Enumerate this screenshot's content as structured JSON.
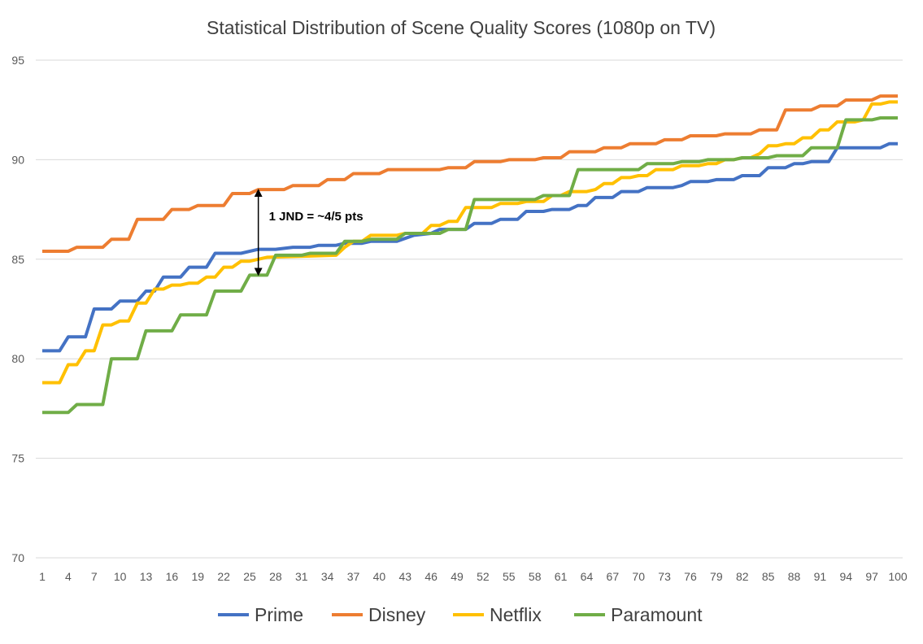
{
  "chart_data": {
    "type": "line",
    "title": "Statistical Distribution of Scene Quality Scores (1080p on TV)",
    "xlabel": "",
    "ylabel": "",
    "ylim": [
      70,
      95
    ],
    "yticks": [
      70,
      75,
      80,
      85,
      90,
      95
    ],
    "xlim": [
      1,
      100
    ],
    "xticks": [
      1,
      4,
      7,
      10,
      13,
      16,
      19,
      22,
      25,
      28,
      31,
      34,
      37,
      40,
      43,
      46,
      49,
      52,
      55,
      58,
      61,
      64,
      67,
      70,
      73,
      76,
      79,
      82,
      85,
      88,
      91,
      94,
      97,
      100
    ],
    "grid": true,
    "legend_position": "bottom",
    "series": [
      {
        "name": "Prime",
        "color": "#4472C4",
        "points": [
          [
            1,
            80.4
          ],
          [
            3,
            80.4
          ],
          [
            4,
            81.1
          ],
          [
            6,
            81.1
          ],
          [
            7,
            82.5
          ],
          [
            9,
            82.5
          ],
          [
            10,
            82.9
          ],
          [
            12,
            82.9
          ],
          [
            13,
            83.4
          ],
          [
            14,
            83.4
          ],
          [
            15,
            84.1
          ],
          [
            17,
            84.1
          ],
          [
            18,
            84.6
          ],
          [
            20,
            84.6
          ],
          [
            21,
            85.3
          ],
          [
            24,
            85.3
          ],
          [
            26,
            85.5
          ],
          [
            28,
            85.5
          ],
          [
            30,
            85.6
          ],
          [
            32,
            85.6
          ],
          [
            33,
            85.7
          ],
          [
            35,
            85.7
          ],
          [
            36,
            85.8
          ],
          [
            38,
            85.8
          ],
          [
            39,
            85.9
          ],
          [
            42,
            85.9
          ],
          [
            44,
            86.2
          ],
          [
            46,
            86.3
          ],
          [
            47,
            86.5
          ],
          [
            50,
            86.5
          ],
          [
            51,
            86.8
          ],
          [
            53,
            86.8
          ],
          [
            54,
            87.0
          ],
          [
            56,
            87.0
          ],
          [
            57,
            87.4
          ],
          [
            59,
            87.4
          ],
          [
            60,
            87.5
          ],
          [
            62,
            87.5
          ],
          [
            63,
            87.7
          ],
          [
            64,
            87.7
          ],
          [
            65,
            88.1
          ],
          [
            67,
            88.1
          ],
          [
            68,
            88.4
          ],
          [
            70,
            88.4
          ],
          [
            71,
            88.6
          ],
          [
            74,
            88.6
          ],
          [
            75,
            88.7
          ],
          [
            76,
            88.9
          ],
          [
            78,
            88.9
          ],
          [
            79,
            89.0
          ],
          [
            81,
            89.0
          ],
          [
            82,
            89.2
          ],
          [
            84,
            89.2
          ],
          [
            85,
            89.6
          ],
          [
            87,
            89.6
          ],
          [
            88,
            89.8
          ],
          [
            89,
            89.8
          ],
          [
            90,
            89.9
          ],
          [
            92,
            89.9
          ],
          [
            93,
            90.6
          ],
          [
            98,
            90.6
          ],
          [
            99,
            90.8
          ],
          [
            100,
            90.8
          ]
        ]
      },
      {
        "name": "Disney",
        "color": "#ED7D31",
        "points": [
          [
            1,
            85.4
          ],
          [
            4,
            85.4
          ],
          [
            5,
            85.6
          ],
          [
            8,
            85.6
          ],
          [
            9,
            86.0
          ],
          [
            11,
            86.0
          ],
          [
            12,
            87.0
          ],
          [
            15,
            87.0
          ],
          [
            16,
            87.5
          ],
          [
            18,
            87.5
          ],
          [
            19,
            87.7
          ],
          [
            22,
            87.7
          ],
          [
            23,
            88.3
          ],
          [
            25,
            88.3
          ],
          [
            26,
            88.5
          ],
          [
            29,
            88.5
          ],
          [
            30,
            88.7
          ],
          [
            33,
            88.7
          ],
          [
            34,
            89.0
          ],
          [
            36,
            89.0
          ],
          [
            37,
            89.3
          ],
          [
            40,
            89.3
          ],
          [
            41,
            89.5
          ],
          [
            47,
            89.5
          ],
          [
            48,
            89.6
          ],
          [
            50,
            89.6
          ],
          [
            51,
            89.9
          ],
          [
            54,
            89.9
          ],
          [
            55,
            90.0
          ],
          [
            58,
            90.0
          ],
          [
            59,
            90.1
          ],
          [
            61,
            90.1
          ],
          [
            62,
            90.4
          ],
          [
            65,
            90.4
          ],
          [
            66,
            90.6
          ],
          [
            68,
            90.6
          ],
          [
            69,
            90.8
          ],
          [
            72,
            90.8
          ],
          [
            73,
            91.0
          ],
          [
            75,
            91.0
          ],
          [
            76,
            91.2
          ],
          [
            79,
            91.2
          ],
          [
            80,
            91.3
          ],
          [
            83,
            91.3
          ],
          [
            84,
            91.5
          ],
          [
            86,
            91.5
          ],
          [
            87,
            92.5
          ],
          [
            90,
            92.5
          ],
          [
            91,
            92.7
          ],
          [
            93,
            92.7
          ],
          [
            94,
            93.0
          ],
          [
            97,
            93.0
          ],
          [
            98,
            93.2
          ],
          [
            100,
            93.2
          ]
        ]
      },
      {
        "name": "Netflix",
        "color": "#FFC000",
        "points": [
          [
            1,
            78.8
          ],
          [
            3,
            78.8
          ],
          [
            4,
            79.7
          ],
          [
            5,
            79.7
          ],
          [
            6,
            80.4
          ],
          [
            7,
            80.4
          ],
          [
            8,
            81.7
          ],
          [
            9,
            81.7
          ],
          [
            10,
            81.9
          ],
          [
            11,
            81.9
          ],
          [
            12,
            82.8
          ],
          [
            13,
            82.8
          ],
          [
            14,
            83.5
          ],
          [
            15,
            83.5
          ],
          [
            16,
            83.7
          ],
          [
            17,
            83.7
          ],
          [
            18,
            83.8
          ],
          [
            19,
            83.8
          ],
          [
            20,
            84.1
          ],
          [
            21,
            84.1
          ],
          [
            22,
            84.6
          ],
          [
            23,
            84.6
          ],
          [
            24,
            84.9
          ],
          [
            25,
            84.9
          ],
          [
            26,
            85.0
          ],
          [
            27,
            85.1
          ],
          [
            35,
            85.2
          ],
          [
            36,
            85.6
          ],
          [
            37,
            85.9
          ],
          [
            38,
            85.9
          ],
          [
            39,
            86.2
          ],
          [
            42,
            86.2
          ],
          [
            43,
            86.3
          ],
          [
            45,
            86.3
          ],
          [
            46,
            86.7
          ],
          [
            47,
            86.7
          ],
          [
            48,
            86.9
          ],
          [
            49,
            86.9
          ],
          [
            50,
            87.6
          ],
          [
            53,
            87.6
          ],
          [
            54,
            87.8
          ],
          [
            56,
            87.8
          ],
          [
            57,
            87.9
          ],
          [
            59,
            87.9
          ],
          [
            60,
            88.2
          ],
          [
            61,
            88.2
          ],
          [
            62,
            88.4
          ],
          [
            64,
            88.4
          ],
          [
            65,
            88.5
          ],
          [
            66,
            88.8
          ],
          [
            67,
            88.8
          ],
          [
            68,
            89.1
          ],
          [
            69,
            89.1
          ],
          [
            70,
            89.2
          ],
          [
            71,
            89.2
          ],
          [
            72,
            89.5
          ],
          [
            74,
            89.5
          ],
          [
            75,
            89.7
          ],
          [
            77,
            89.7
          ],
          [
            78,
            89.8
          ],
          [
            79,
            89.8
          ],
          [
            80,
            90.0
          ],
          [
            81,
            90.0
          ],
          [
            82,
            90.1
          ],
          [
            83,
            90.1
          ],
          [
            84,
            90.3
          ],
          [
            85,
            90.7
          ],
          [
            86,
            90.7
          ],
          [
            87,
            90.8
          ],
          [
            88,
            90.8
          ],
          [
            89,
            91.1
          ],
          [
            90,
            91.1
          ],
          [
            91,
            91.5
          ],
          [
            92,
            91.5
          ],
          [
            93,
            91.9
          ],
          [
            95,
            91.9
          ],
          [
            96,
            92.0
          ],
          [
            97,
            92.8
          ],
          [
            98,
            92.8
          ],
          [
            99,
            92.9
          ],
          [
            100,
            92.9
          ]
        ]
      },
      {
        "name": "Paramount",
        "color": "#70AD47",
        "points": [
          [
            1,
            77.3
          ],
          [
            4,
            77.3
          ],
          [
            5,
            77.7
          ],
          [
            8,
            77.7
          ],
          [
            9,
            80.0
          ],
          [
            12,
            80.0
          ],
          [
            13,
            81.4
          ],
          [
            16,
            81.4
          ],
          [
            17,
            82.2
          ],
          [
            20,
            82.2
          ],
          [
            21,
            83.4
          ],
          [
            24,
            83.4
          ],
          [
            25,
            84.2
          ],
          [
            27,
            84.2
          ],
          [
            28,
            85.2
          ],
          [
            31,
            85.2
          ],
          [
            32,
            85.3
          ],
          [
            35,
            85.3
          ],
          [
            36,
            85.9
          ],
          [
            38,
            85.9
          ],
          [
            39,
            86.0
          ],
          [
            42,
            86.0
          ],
          [
            43,
            86.3
          ],
          [
            47,
            86.3
          ],
          [
            48,
            86.5
          ],
          [
            50,
            86.5
          ],
          [
            51,
            88.0
          ],
          [
            54,
            88.0
          ],
          [
            55,
            88.0
          ],
          [
            58,
            88.0
          ],
          [
            59,
            88.2
          ],
          [
            62,
            88.2
          ],
          [
            63,
            89.5
          ],
          [
            66,
            89.5
          ],
          [
            67,
            89.5
          ],
          [
            70,
            89.5
          ],
          [
            71,
            89.8
          ],
          [
            74,
            89.8
          ],
          [
            75,
            89.9
          ],
          [
            77,
            89.9
          ],
          [
            78,
            90.0
          ],
          [
            81,
            90.0
          ],
          [
            82,
            90.1
          ],
          [
            85,
            90.1
          ],
          [
            86,
            90.2
          ],
          [
            89,
            90.2
          ],
          [
            90,
            90.6
          ],
          [
            93,
            90.6
          ],
          [
            94,
            92.0
          ],
          [
            97,
            92.0
          ],
          [
            98,
            92.1
          ],
          [
            100,
            92.1
          ]
        ]
      }
    ],
    "annotations": [
      {
        "text": "1 JND = ~4/5 pts",
        "x": 26,
        "y_from": 88.5,
        "y_to": 84.2
      }
    ]
  }
}
